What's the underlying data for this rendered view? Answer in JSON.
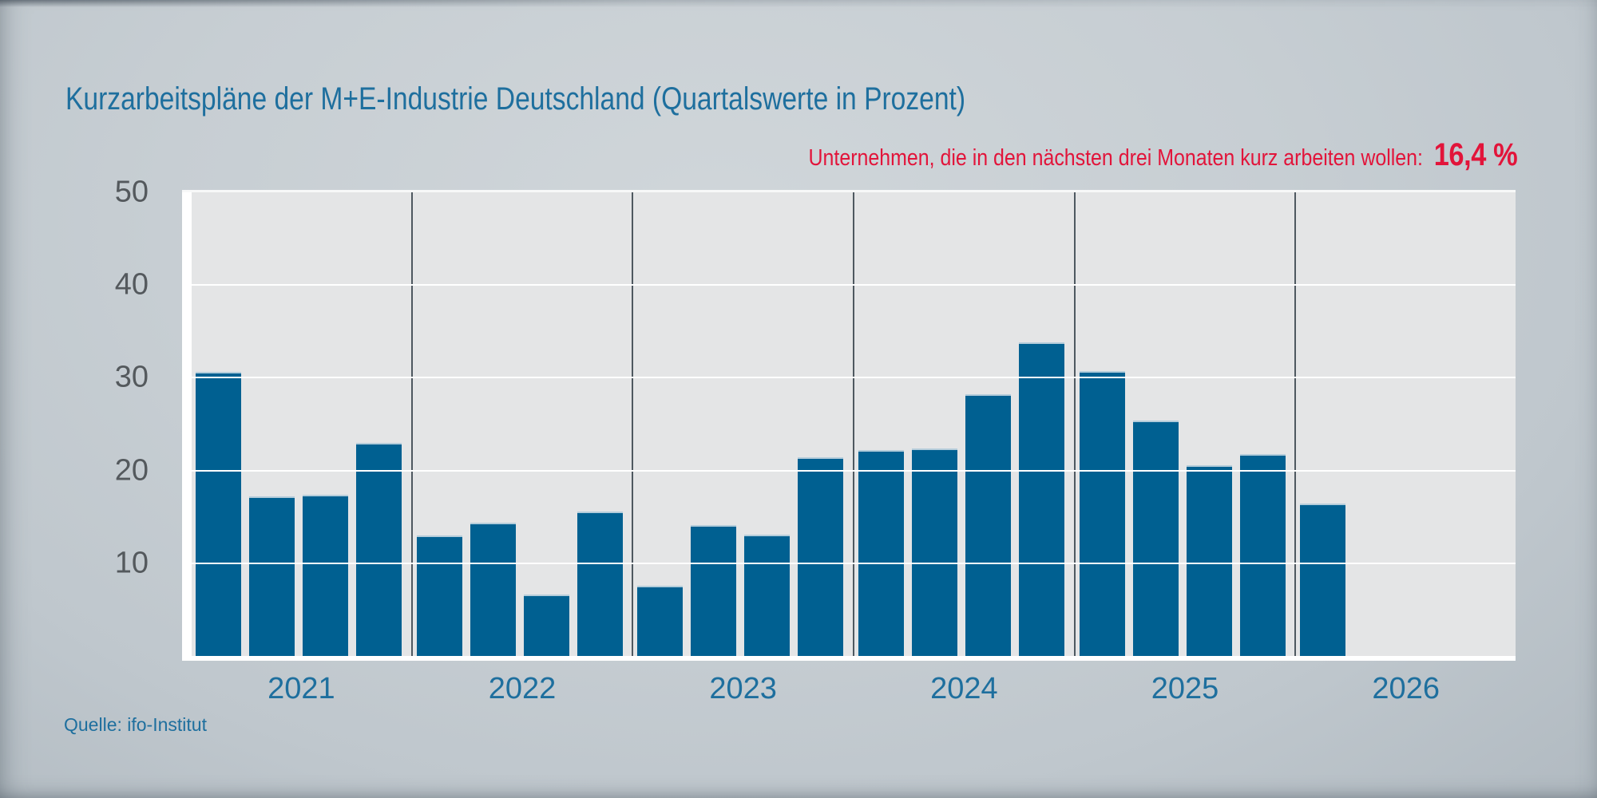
{
  "page": {
    "title": "Kurzarbeitspläne der M+E-Industrie Deutschland (Quartalswerte in Prozent)",
    "source": "Quelle: ifo-Institut"
  },
  "annotation": {
    "label": "Unternehmen, die in den nächsten drei Monaten kurz arbeiten wollen:",
    "value": "16,4 %"
  },
  "colors": {
    "title_blue": "#1e6f9e",
    "annotation_red": "#e2143a",
    "bar_blue": "#006091",
    "plot_background": "#e4e5e6",
    "gridline_white": "#ffffff",
    "year_separator": "#4e5860",
    "ytick_gray": "#54595d",
    "page_background": "#c6cdd2"
  },
  "chart_data": {
    "type": "bar",
    "title": "Kurzarbeitspläne der M+E-Industrie Deutschland (Quartalswerte in Prozent)",
    "annotation_label": "Unternehmen, die in den nächsten drei Monaten kurz arbeiten wollen:",
    "annotation_value": "16,4 %",
    "source": "Quelle: ifo-Institut",
    "xlabel": "",
    "ylabel": "",
    "ylim": [
      0,
      50
    ],
    "yticks": [
      50,
      40,
      30,
      20,
      10
    ],
    "grid": "horizontal-white-lines, dark vertical year separators",
    "legend": "none",
    "categories": [
      "2021",
      "2022",
      "2023",
      "2024",
      "2025",
      "2026"
    ],
    "years": [
      {
        "label": "2021",
        "values": [
          30.6,
          17.2,
          17.4,
          23.0
        ]
      },
      {
        "label": "2022",
        "values": [
          13.0,
          14.4,
          6.6,
          15.6
        ]
      },
      {
        "label": "2023",
        "values": [
          7.6,
          14.1,
          13.1,
          21.4
        ]
      },
      {
        "label": "2024",
        "values": [
          22.2,
          22.4,
          28.2,
          33.8
        ]
      },
      {
        "label": "2025",
        "values": [
          30.7,
          25.4,
          20.6,
          21.8
        ]
      },
      {
        "label": "2026",
        "values": [
          16.4
        ]
      }
    ]
  }
}
